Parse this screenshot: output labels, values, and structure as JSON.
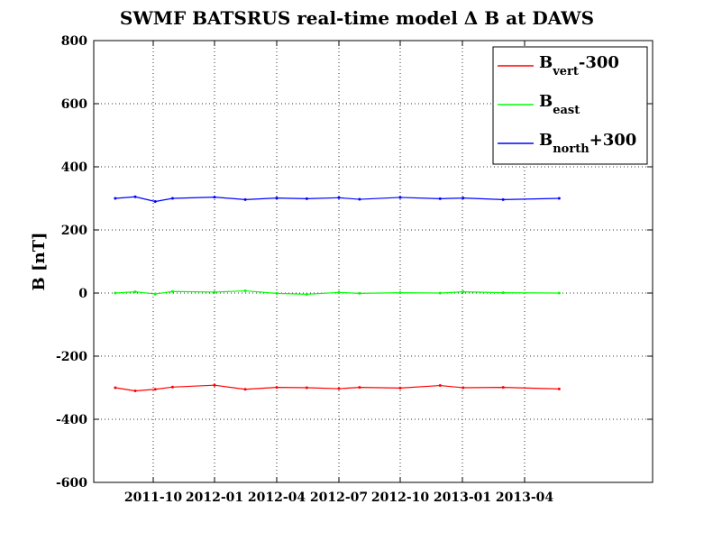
{
  "chart_data": {
    "type": "line",
    "title": "SWMF BATSRUS real-time model  Δ B at DAWS",
    "ylabel": "B [nT]",
    "xlabel": "",
    "ylim": [
      -600,
      800
    ],
    "grid": true,
    "legend_position": "top-right",
    "x_ticks": [
      "2011-10",
      "2012-01",
      "2012-04",
      "2012-07",
      "2012-10",
      "2013-01",
      "2013-04"
    ],
    "y_ticks": [
      -600,
      -400,
      -200,
      0,
      200,
      400,
      600,
      800
    ],
    "series": [
      {
        "legend_main": "B",
        "legend_sub": "vert",
        "legend_suffix": "-300",
        "color": "#ff0000",
        "values": [
          {
            "x": "2011-08-05",
            "y": -300
          },
          {
            "x": "2011-09-04",
            "y": -310
          },
          {
            "x": "2011-10-04",
            "y": -305
          },
          {
            "x": "2011-10-30",
            "y": -298
          },
          {
            "x": "2012-01-01",
            "y": -292
          },
          {
            "x": "2012-02-15",
            "y": -305
          },
          {
            "x": "2012-04-01",
            "y": -299
          },
          {
            "x": "2012-05-15",
            "y": -300
          },
          {
            "x": "2012-07-01",
            "y": -303
          },
          {
            "x": "2012-08-01",
            "y": -299
          },
          {
            "x": "2012-10-01",
            "y": -301
          },
          {
            "x": "2012-11-29",
            "y": -293
          },
          {
            "x": "2013-01-02",
            "y": -300
          },
          {
            "x": "2013-03-01",
            "y": -299
          },
          {
            "x": "2013-05-21",
            "y": -304
          }
        ]
      },
      {
        "legend_main": "B",
        "legend_sub": "east",
        "legend_suffix": "",
        "color": "#00ff00",
        "values": [
          {
            "x": "2011-08-05",
            "y": 0
          },
          {
            "x": "2011-09-04",
            "y": 4
          },
          {
            "x": "2011-10-04",
            "y": -3
          },
          {
            "x": "2011-10-30",
            "y": 5
          },
          {
            "x": "2012-01-01",
            "y": 3
          },
          {
            "x": "2012-02-15",
            "y": 7
          },
          {
            "x": "2012-04-01",
            "y": -1
          },
          {
            "x": "2012-05-15",
            "y": -4
          },
          {
            "x": "2012-07-01",
            "y": 2
          },
          {
            "x": "2012-08-01",
            "y": -1
          },
          {
            "x": "2012-10-01",
            "y": 1
          },
          {
            "x": "2012-11-29",
            "y": 0
          },
          {
            "x": "2013-01-02",
            "y": 4
          },
          {
            "x": "2013-03-01",
            "y": 1
          },
          {
            "x": "2013-05-21",
            "y": 0
          }
        ]
      },
      {
        "legend_main": "B",
        "legend_sub": "north",
        "legend_suffix": "+300",
        "color": "#0000ff",
        "values": [
          {
            "x": "2011-08-05",
            "y": 300
          },
          {
            "x": "2011-09-04",
            "y": 305
          },
          {
            "x": "2011-10-04",
            "y": 290
          },
          {
            "x": "2011-10-30",
            "y": 300
          },
          {
            "x": "2012-01-01",
            "y": 304
          },
          {
            "x": "2012-02-15",
            "y": 296
          },
          {
            "x": "2012-04-01",
            "y": 301
          },
          {
            "x": "2012-05-15",
            "y": 299
          },
          {
            "x": "2012-07-01",
            "y": 302
          },
          {
            "x": "2012-08-01",
            "y": 297
          },
          {
            "x": "2012-10-01",
            "y": 303
          },
          {
            "x": "2012-11-29",
            "y": 299
          },
          {
            "x": "2013-01-02",
            "y": 301
          },
          {
            "x": "2013-03-01",
            "y": 296
          },
          {
            "x": "2013-05-21",
            "y": 300
          }
        ]
      }
    ]
  }
}
